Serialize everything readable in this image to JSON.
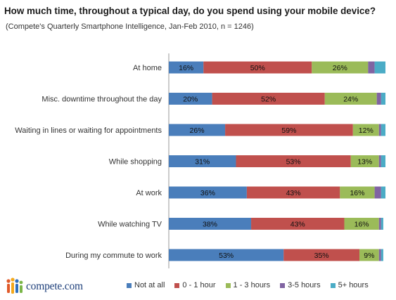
{
  "chart_data": {
    "type": "bar",
    "orientation": "horizontal",
    "stacked": true,
    "title": "How much time, throughout a typical day, do you spend using your mobile device?",
    "subtitle": "(Compete's Quarterly Smartphone Intelligence, Jan-Feb 2010, n = 1246)",
    "categories": [
      "At home",
      "Misc. downtime throughout the day",
      "Waiting in lines  or waiting for appointments",
      "While shopping",
      "At work",
      "While watching  TV",
      "During my commute to work"
    ],
    "series": [
      {
        "name": "Not at all",
        "color": "#4a7ebb",
        "values": [
          16,
          20,
          26,
          31,
          36,
          38,
          53
        ],
        "labels": [
          "16%",
          "20%",
          "26%",
          "31%",
          "36%",
          "38%",
          "53%"
        ]
      },
      {
        "name": "0 - 1 hour",
        "color": "#c0504d",
        "values": [
          50,
          52,
          59,
          53,
          43,
          43,
          35
        ],
        "labels": [
          "50%",
          "52%",
          "59%",
          "53%",
          "43%",
          "43%",
          "35%"
        ]
      },
      {
        "name": "1 - 3 hours",
        "color": "#9bbb59",
        "values": [
          26,
          24,
          12,
          13,
          16,
          16,
          9
        ],
        "labels": [
          "26%",
          "24%",
          "12%",
          "13%",
          "16%",
          "16%",
          "9%"
        ]
      },
      {
        "name": "3-5 hours",
        "color": "#8064a2",
        "values": [
          3,
          2,
          1,
          1,
          3,
          1,
          1
        ],
        "labels": [
          "",
          "",
          "",
          "",
          "",
          "",
          ""
        ]
      },
      {
        "name": "5+ hours",
        "color": "#4bacc6",
        "values": [
          5,
          2,
          2,
          2,
          2,
          1,
          1
        ],
        "labels": [
          "",
          "",
          "",
          "",
          "",
          "",
          ""
        ]
      }
    ],
    "xlim": [
      0,
      100
    ],
    "grid": false,
    "legend_position": "bottom"
  },
  "branding": {
    "logo_text": "compete.com",
    "logo_colors": [
      "#e05a2a",
      "#f3a81c",
      "#2e6fbf",
      "#7ab648"
    ]
  }
}
